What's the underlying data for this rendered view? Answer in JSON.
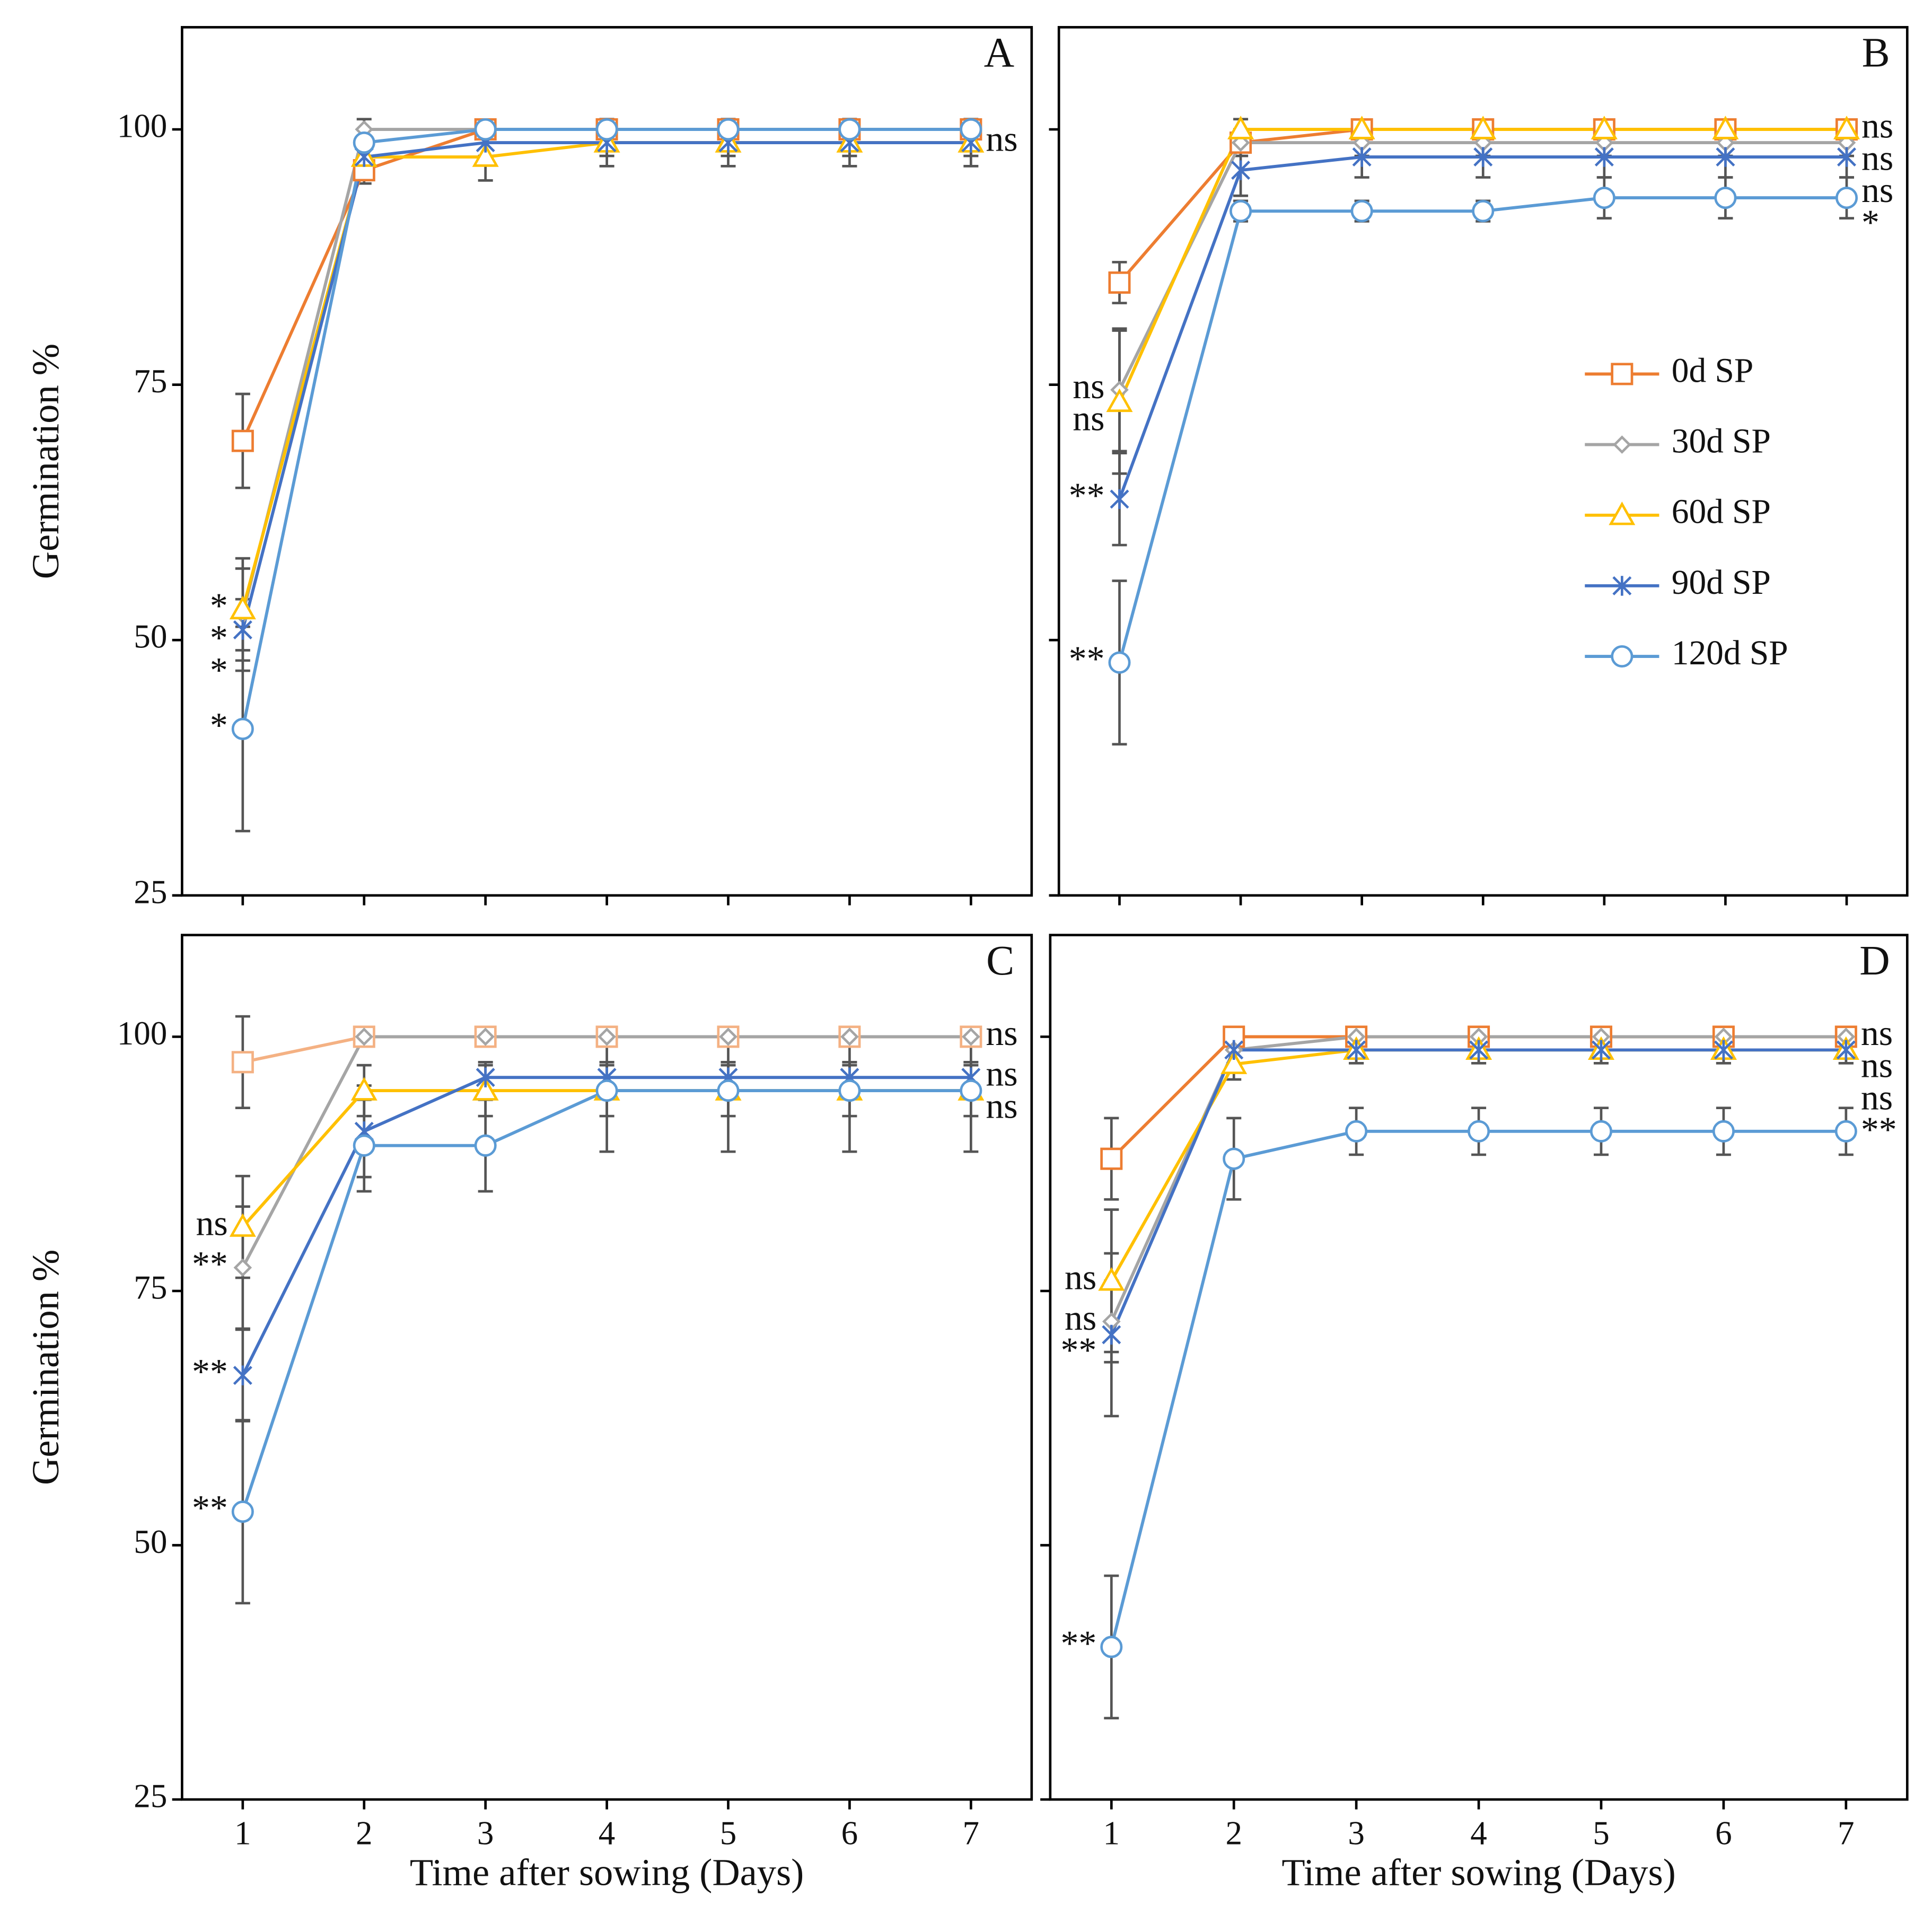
{
  "chart_data": [
    {
      "type": "line",
      "title": "A",
      "ylabel": "Germination %",
      "show_ytick_labels": true,
      "show_xtick_labels": false,
      "x": [
        1,
        2,
        3,
        4,
        5,
        6,
        7
      ],
      "xlim": [
        0.5,
        7.5
      ],
      "xticks": [
        1,
        2,
        3,
        4,
        5,
        6,
        7
      ],
      "ylim": [
        25,
        110
      ],
      "yticks": [
        25,
        50,
        75,
        100
      ],
      "series": [
        {
          "color": "#ed7d31",
          "marker": "square",
          "values": [
            69.5,
            96,
            100,
            100,
            100,
            100,
            100
          ],
          "errors": [
            4.6,
            1.3,
            0,
            0,
            0,
            0,
            0
          ]
        },
        {
          "color": "#a5a5a5",
          "marker": "diamond",
          "values": [
            52.5,
            100,
            100,
            100,
            100,
            100,
            100
          ],
          "errors": [
            5.5,
            1,
            0,
            0,
            0,
            0,
            0
          ],
          "sig_start": "*"
        },
        {
          "color": "#ffc000",
          "marker": "triangle",
          "values": [
            53,
            97.3,
            97.3,
            98.7,
            98.7,
            98.7,
            98.7
          ],
          "errors": [
            4,
            2,
            2.3,
            2.3,
            2.3,
            2.3,
            2.3
          ],
          "sig_start": "*"
        },
        {
          "color": "#4472c4",
          "marker": "asterisk",
          "values": [
            51,
            97.3,
            98.7,
            98.7,
            98.7,
            98.7,
            98.7
          ],
          "errors": [
            3,
            1.5,
            1.3,
            1.3,
            1.3,
            1.3,
            1.3
          ],
          "sig_start": "*",
          "sig_end": "ns"
        },
        {
          "color": "#5b9bd5",
          "marker": "circle",
          "values": [
            41.3,
            98.7,
            100,
            100,
            100,
            100,
            100
          ],
          "errors": [
            10,
            1.3,
            0,
            0,
            0,
            0,
            0
          ],
          "sig_start": "*"
        }
      ]
    },
    {
      "type": "line",
      "title": "B",
      "show_ytick_labels": false,
      "show_xtick_labels": false,
      "x": [
        1,
        2,
        3,
        4,
        5,
        6,
        7
      ],
      "xlim": [
        0.5,
        7.5
      ],
      "xticks": [
        1,
        2,
        3,
        4,
        5,
        6,
        7
      ],
      "ylim": [
        25,
        110
      ],
      "yticks": [
        25,
        50,
        75,
        100
      ],
      "legend": "right",
      "series": [
        {
          "name": "0d SP",
          "color": "#ed7d31",
          "marker": "square",
          "values": [
            85,
            98.7,
            100,
            100,
            100,
            100,
            100
          ],
          "errors": [
            2,
            1.3,
            0.5,
            0.5,
            0.5,
            0.5,
            0.5
          ],
          "sig_end": "ns"
        },
        {
          "name": "30d SP",
          "color": "#a5a5a5",
          "marker": "diamond",
          "values": [
            74.5,
            98.7,
            98.7,
            98.7,
            98.7,
            98.7,
            98.7
          ],
          "errors": [
            6,
            1.3,
            1.3,
            1.3,
            1.3,
            1.3,
            1.3
          ],
          "sig_start": "ns",
          "sig_end": "ns"
        },
        {
          "name": "60d SP",
          "color": "#ffc000",
          "marker": "triangle",
          "values": [
            73.3,
            100,
            100,
            100,
            100,
            100,
            100
          ],
          "errors": [
            7,
            1,
            0.5,
            0.5,
            0.5,
            0.5,
            0.5
          ],
          "sig_start": "ns"
        },
        {
          "name": "90d SP",
          "color": "#4472c4",
          "marker": "asterisk",
          "values": [
            63.8,
            96,
            97.3,
            97.3,
            97.3,
            97.3,
            97.3
          ],
          "errors": [
            4.5,
            2.5,
            2,
            2,
            2,
            2,
            2
          ],
          "sig_start": "**",
          "sig_end": "ns"
        },
        {
          "name": "120d SP",
          "color": "#5b9bd5",
          "marker": "circle",
          "values": [
            47.8,
            92,
            92,
            92,
            93.3,
            93.3,
            93.3
          ],
          "errors": [
            8,
            1,
            1,
            1,
            2,
            2,
            2
          ],
          "sig_start": "**",
          "sig_end": "*"
        }
      ]
    },
    {
      "type": "line",
      "title": "C",
      "ylabel": "Germination %",
      "xlabel": "Time after sowing (Days)",
      "show_ytick_labels": true,
      "show_xtick_labels": true,
      "x": [
        1,
        2,
        3,
        4,
        5,
        6,
        7
      ],
      "xlim": [
        0.5,
        7.5
      ],
      "xticks": [
        1,
        2,
        3,
        4,
        5,
        6,
        7
      ],
      "ylim": [
        25,
        110
      ],
      "yticks": [
        25,
        50,
        75,
        100
      ],
      "series": [
        {
          "color": "#f4b183",
          "marker": "square",
          "values": [
            97.5,
            100,
            100,
            100,
            100,
            100,
            100
          ],
          "errors": [
            4.5,
            0,
            0,
            0,
            0,
            0,
            0
          ]
        },
        {
          "color": "#a5a5a5",
          "marker": "diamond",
          "values": [
            77.3,
            100,
            100,
            100,
            100,
            100,
            100
          ],
          "errors": [
            6,
            0,
            0,
            0,
            0,
            0,
            0
          ],
          "sig_start": "**",
          "sig_end": "ns"
        },
        {
          "color": "#ffc000",
          "marker": "triangle",
          "values": [
            81.3,
            94.7,
            94.7,
            94.7,
            94.7,
            94.7,
            94.7
          ],
          "errors": [
            5,
            2.5,
            2.5,
            2.5,
            2.5,
            2.5,
            2.5
          ],
          "sig_start": "ns"
        },
        {
          "color": "#4472c4",
          "marker": "asterisk",
          "values": [
            66.7,
            90.7,
            96,
            96,
            96,
            96,
            96
          ],
          "errors": [
            4.5,
            4.5,
            1.5,
            1.5,
            1.5,
            1.5,
            1.5
          ],
          "sig_start": "**",
          "sig_end": "ns"
        },
        {
          "color": "#5b9bd5",
          "marker": "circle",
          "values": [
            53.3,
            89.3,
            89.3,
            94.7,
            94.7,
            94.7,
            94.7
          ],
          "errors": [
            9,
            4.5,
            4.5,
            6,
            6,
            6,
            6
          ],
          "sig_start": "**",
          "sig_end": "ns"
        }
      ]
    },
    {
      "type": "line",
      "title": "D",
      "xlabel": "Time after sowing (Days)",
      "show_ytick_labels": false,
      "show_xtick_labels": true,
      "x": [
        1,
        2,
        3,
        4,
        5,
        6,
        7
      ],
      "xlim": [
        0.5,
        7.5
      ],
      "xticks": [
        1,
        2,
        3,
        4,
        5,
        6,
        7
      ],
      "ylim": [
        25,
        110
      ],
      "yticks": [
        25,
        50,
        75,
        100
      ],
      "series": [
        {
          "color": "#ed7d31",
          "marker": "square",
          "values": [
            88,
            100,
            100,
            100,
            100,
            100,
            100
          ],
          "errors": [
            4,
            0.5,
            0.5,
            0.5,
            0.5,
            0.5,
            0.5
          ],
          "sig_end": "ns"
        },
        {
          "color": "#a5a5a5",
          "marker": "diamond",
          "values": [
            72,
            98.7,
            100,
            100,
            100,
            100,
            100
          ],
          "errors": [
            4,
            1.3,
            0.5,
            0.5,
            0.5,
            0.5,
            0.5
          ],
          "sig_start": "ns"
        },
        {
          "color": "#ffc000",
          "marker": "triangle",
          "values": [
            76,
            97.3,
            98.7,
            98.7,
            98.7,
            98.7,
            98.7
          ],
          "errors": [
            7,
            1.5,
            1.3,
            1.3,
            1.3,
            1.3,
            1.3
          ],
          "sig_start": "ns",
          "sig_end": "ns"
        },
        {
          "color": "#4472c4",
          "marker": "asterisk",
          "values": [
            70.7,
            98.7,
            98.7,
            98.7,
            98.7,
            98.7,
            98.7
          ],
          "errors": [
            8,
            1.3,
            1.3,
            1.3,
            1.3,
            1.3,
            1.3
          ],
          "sig_start": "**",
          "sig_end": "ns"
        },
        {
          "color": "#5b9bd5",
          "marker": "circle",
          "values": [
            40,
            88,
            90.7,
            90.7,
            90.7,
            90.7,
            90.7
          ],
          "errors": [
            7,
            4,
            2.3,
            2.3,
            2.3,
            2.3,
            2.3
          ],
          "sig_start": "**",
          "sig_end": "**"
        }
      ]
    }
  ]
}
